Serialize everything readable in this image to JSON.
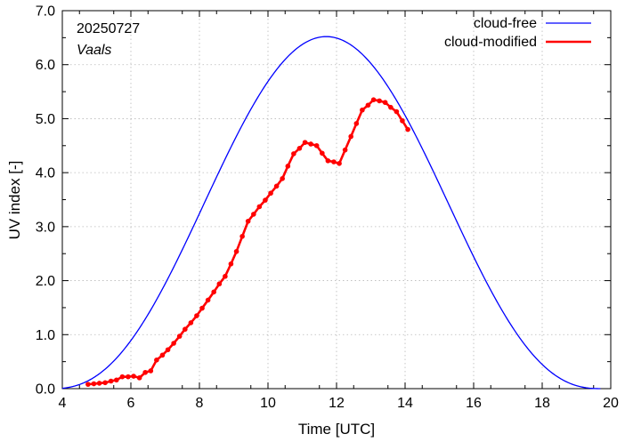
{
  "chart_data": {
    "type": "line",
    "xlabel": "Time  [UTC]",
    "ylabel": "UV index  [-]",
    "xlim": [
      4,
      20
    ],
    "ylim": [
      0,
      7
    ],
    "x_ticks": [
      "4",
      "6",
      "8",
      "10",
      "12",
      "14",
      "16",
      "18",
      "20"
    ],
    "y_ticks": [
      "0.0",
      "1.0",
      "2.0",
      "3.0",
      "4.0",
      "5.0",
      "6.0",
      "7.0"
    ],
    "annotations": {
      "date": "20250727",
      "location": "Vaals"
    },
    "legend_position": "top-right",
    "series": [
      {
        "name": "cloud-free",
        "color": "#0000ff",
        "style": "line",
        "model": {
          "peak_time": 11.7,
          "peak_value": 6.52,
          "start": 3.7,
          "end": 19.7
        }
      },
      {
        "name": "cloud-modified",
        "color": "#ff0000",
        "style": "line-points",
        "x": [
          4.75,
          4.92,
          5.08,
          5.25,
          5.42,
          5.58,
          5.75,
          5.92,
          6.08,
          6.25,
          6.42,
          6.58,
          6.75,
          6.92,
          7.08,
          7.25,
          7.42,
          7.58,
          7.75,
          7.92,
          8.08,
          8.25,
          8.42,
          8.58,
          8.75,
          8.92,
          9.08,
          9.25,
          9.42,
          9.58,
          9.75,
          9.92,
          10.08,
          10.25,
          10.42,
          10.58,
          10.75,
          10.92,
          11.08,
          11.25,
          11.42,
          11.58,
          11.75,
          11.92,
          12.08,
          12.25,
          12.42,
          12.58,
          12.75,
          12.92,
          13.08,
          13.25,
          13.42,
          13.58,
          13.75,
          13.92,
          14.08
        ],
        "values": [
          0.08,
          0.09,
          0.1,
          0.11,
          0.14,
          0.16,
          0.22,
          0.22,
          0.23,
          0.2,
          0.3,
          0.33,
          0.53,
          0.62,
          0.72,
          0.84,
          0.97,
          1.1,
          1.22,
          1.35,
          1.49,
          1.64,
          1.79,
          1.94,
          2.08,
          2.31,
          2.54,
          2.82,
          3.1,
          3.23,
          3.37,
          3.49,
          3.62,
          3.75,
          3.89,
          4.12,
          4.35,
          4.45,
          4.56,
          4.53,
          4.5,
          4.36,
          4.22,
          4.2,
          4.17,
          4.42,
          4.67,
          4.91,
          5.16,
          5.25,
          5.35,
          5.33,
          5.3,
          5.21,
          5.13,
          4.96,
          4.8
        ]
      }
    ]
  }
}
